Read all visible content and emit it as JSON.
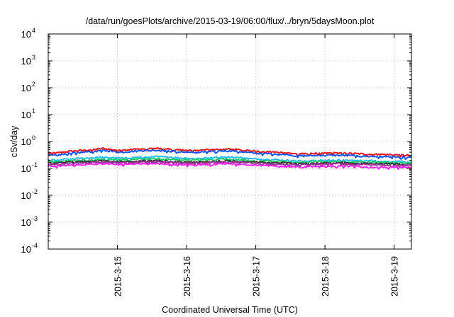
{
  "chart_data": {
    "type": "line",
    "title": "/data/run/goesPlots/archive/2015-03-19/06:00/flux/../bryn/5daysMoon.plot",
    "xlabel": "Coordinated Universal Time (UTC)",
    "ylabel": "cSv/day",
    "yscale": "log",
    "ylim": [
      0.0001,
      10000
    ],
    "y_ticks": [
      {
        "base": "10",
        "exp": "-4"
      },
      {
        "base": "10",
        "exp": "-3"
      },
      {
        "base": "10",
        "exp": "-2"
      },
      {
        "base": "10",
        "exp": "-1"
      },
      {
        "base": "10",
        "exp": "0"
      },
      {
        "base": "10",
        "exp": "1"
      },
      {
        "base": "10",
        "exp": "2"
      },
      {
        "base": "10",
        "exp": "3"
      },
      {
        "base": "10",
        "exp": "4"
      }
    ],
    "xlim": [
      "2015-03-14 00:00",
      "2015-03-19 06:00"
    ],
    "x_ticks": [
      "2015-3-15",
      "2015-3-16",
      "2015-3-17",
      "2015-3-18",
      "2015-3-19"
    ],
    "grid": true,
    "legend": "none",
    "series": [
      {
        "color": "#ee1111",
        "base": 0.42,
        "values": [
          0.38,
          0.37,
          0.42,
          0.45,
          0.47,
          0.5,
          0.55,
          0.5,
          0.47,
          0.5,
          0.52,
          0.53,
          0.55,
          0.52,
          0.5,
          0.47,
          0.45,
          0.48,
          0.5,
          0.52,
          0.52,
          0.5,
          0.46,
          0.43,
          0.42,
          0.4,
          0.38,
          0.36,
          0.35,
          0.36,
          0.36,
          0.37,
          0.37,
          0.36,
          0.35,
          0.34,
          0.33,
          0.33,
          0.32,
          0.31,
          0.3
        ]
      },
      {
        "color": "#1155ee",
        "base": 0.36,
        "values": [
          0.32,
          0.31,
          0.35,
          0.38,
          0.4,
          0.43,
          0.47,
          0.43,
          0.4,
          0.43,
          0.45,
          0.46,
          0.47,
          0.45,
          0.43,
          0.4,
          0.38,
          0.41,
          0.43,
          0.45,
          0.45,
          0.43,
          0.39,
          0.36,
          0.35,
          0.34,
          0.32,
          0.3,
          0.29,
          0.3,
          0.3,
          0.31,
          0.31,
          0.3,
          0.29,
          0.28,
          0.28,
          0.27,
          0.27,
          0.26,
          0.25
        ]
      },
      {
        "color": "#22bbee",
        "base": 0.22,
        "values": [
          0.21,
          0.2,
          0.22,
          0.23,
          0.24,
          0.25,
          0.26,
          0.25,
          0.24,
          0.25,
          0.26,
          0.26,
          0.27,
          0.26,
          0.25,
          0.24,
          0.23,
          0.24,
          0.25,
          0.26,
          0.26,
          0.25,
          0.23,
          0.22,
          0.21,
          0.21,
          0.2,
          0.19,
          0.19,
          0.19,
          0.2,
          0.2,
          0.2,
          0.2,
          0.19,
          0.19,
          0.19,
          0.18,
          0.18,
          0.18,
          0.17
        ]
      },
      {
        "color": "#22cc66",
        "base": 0.19,
        "values": [
          0.18,
          0.18,
          0.19,
          0.2,
          0.2,
          0.21,
          0.22,
          0.21,
          0.21,
          0.21,
          0.22,
          0.22,
          0.23,
          0.22,
          0.21,
          0.21,
          0.2,
          0.21,
          0.21,
          0.22,
          0.22,
          0.21,
          0.2,
          0.19,
          0.19,
          0.18,
          0.18,
          0.17,
          0.17,
          0.17,
          0.18,
          0.18,
          0.18,
          0.18,
          0.17,
          0.17,
          0.17,
          0.17,
          0.16,
          0.16,
          0.16
        ]
      },
      {
        "color": "#333333",
        "base": 0.165,
        "values": [
          0.16,
          0.16,
          0.17,
          0.17,
          0.18,
          0.18,
          0.19,
          0.18,
          0.18,
          0.18,
          0.19,
          0.19,
          0.19,
          0.19,
          0.18,
          0.18,
          0.17,
          0.18,
          0.18,
          0.19,
          0.19,
          0.18,
          0.17,
          0.17,
          0.16,
          0.16,
          0.16,
          0.15,
          0.15,
          0.15,
          0.16,
          0.16,
          0.16,
          0.16,
          0.15,
          0.15,
          0.15,
          0.15,
          0.15,
          0.14,
          0.14
        ]
      },
      {
        "color": "#993399",
        "base": 0.15,
        "values": [
          0.15,
          0.14,
          0.15,
          0.16,
          0.16,
          0.17,
          0.17,
          0.17,
          0.16,
          0.17,
          0.17,
          0.17,
          0.18,
          0.17,
          0.17,
          0.16,
          0.16,
          0.16,
          0.17,
          0.17,
          0.17,
          0.17,
          0.16,
          0.15,
          0.15,
          0.15,
          0.14,
          0.14,
          0.14,
          0.14,
          0.14,
          0.15,
          0.15,
          0.14,
          0.14,
          0.14,
          0.14,
          0.13,
          0.13,
          0.13,
          0.13
        ]
      },
      {
        "color": "#ff22ee",
        "base": 0.125,
        "values": [
          0.12,
          0.12,
          0.13,
          0.13,
          0.14,
          0.14,
          0.15,
          0.14,
          0.14,
          0.14,
          0.15,
          0.15,
          0.15,
          0.15,
          0.14,
          0.14,
          0.13,
          0.14,
          0.14,
          0.15,
          0.15,
          0.14,
          0.13,
          0.13,
          0.13,
          0.12,
          0.12,
          0.12,
          0.11,
          0.12,
          0.12,
          0.12,
          0.12,
          0.12,
          0.12,
          0.11,
          0.11,
          0.11,
          0.11,
          0.11,
          0.11
        ]
      }
    ]
  }
}
